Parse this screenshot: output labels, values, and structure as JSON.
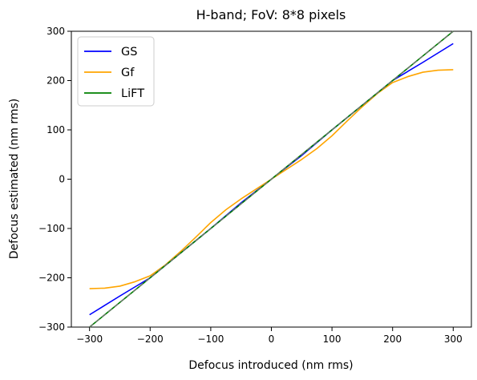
{
  "chart_data": {
    "type": "line",
    "title": "H-band; FoV: 8*8 pixels",
    "xlabel": "Defocus introduced (nm rms)",
    "ylabel": "Defocus estimated (nm rms)",
    "xlim": [
      -330,
      330
    ],
    "ylim": [
      -300,
      300
    ],
    "xticks": [
      -300,
      -200,
      -100,
      0,
      100,
      200,
      300
    ],
    "yticks": [
      -300,
      -200,
      -100,
      0,
      100,
      200,
      300
    ],
    "xtick_labels": [
      "−300",
      "−200",
      "−100",
      "0",
      "100",
      "200",
      "300"
    ],
    "ytick_labels": [
      "−300",
      "−200",
      "−100",
      "0",
      "100",
      "200",
      "300"
    ],
    "grid": false,
    "legend_position": "upper-left",
    "reference_line": {
      "x": [
        -300,
        300
      ],
      "y": [
        -300,
        300
      ],
      "color": "#7a7a7a",
      "dashed": true
    },
    "series": [
      {
        "name": "GS",
        "color": "#0000ff",
        "x": [
          -300,
          -250,
          -200,
          -150,
          -100,
          -50,
          0,
          50,
          100,
          150,
          200,
          250,
          300
        ],
        "y": [
          -275,
          -237,
          -200,
          -150,
          -100,
          -48,
          0,
          48,
          100,
          150,
          200,
          237,
          275
        ]
      },
      {
        "name": "Gf",
        "color": "#ffa500",
        "x": [
          -300,
          -275,
          -250,
          -225,
          -200,
          -175,
          -150,
          -125,
          -100,
          -75,
          -50,
          -25,
          0,
          25,
          50,
          75,
          100,
          125,
          150,
          175,
          200,
          225,
          250,
          275,
          300
        ],
        "y": [
          -222,
          -221,
          -217,
          -208,
          -196,
          -174,
          -147,
          -118,
          -88,
          -62,
          -40,
          -20,
          0,
          20,
          40,
          62,
          88,
          118,
          147,
          174,
          196,
          208,
          217,
          221,
          222
        ]
      },
      {
        "name": "LiFT",
        "color": "#008000",
        "x": [
          -300,
          -200,
          -100,
          0,
          100,
          200,
          300
        ],
        "y": [
          -300,
          -200,
          -100,
          0,
          100,
          200,
          300
        ]
      }
    ]
  }
}
